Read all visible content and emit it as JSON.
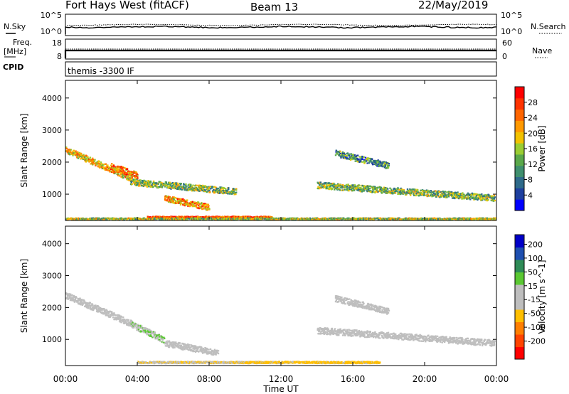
{
  "header": {
    "radar": "Fort Hays West (fitACF)",
    "beam": "Beam 13",
    "date": "22/May/2019"
  },
  "side_labels": {
    "nsky": "N.Sky",
    "nsky_ticks": [
      "10^5",
      "10^0"
    ],
    "nsearch": "N.Search",
    "nsearch_ticks": [
      "10^5",
      "10^0"
    ],
    "freq": "Freq.",
    "freq_unit": "[MHz]",
    "freq_ticks": [
      "18",
      "8"
    ],
    "nave": "Nave",
    "nave_ticks": [
      "60",
      "0"
    ],
    "cpid": "CPID"
  },
  "cpid_text": "themis -3300 IF",
  "colors": {
    "power_scale": [
      "#0000ff",
      "#1e3f9e",
      "#2e6a8a",
      "#3f8f6e",
      "#5aa84a",
      "#9acd32",
      "#f2c200",
      "#ff9900",
      "#ff6600",
      "#ff3300",
      "#ff0000"
    ],
    "velocity_scale": [
      "#ff0000",
      "#ff4400",
      "#ff7f00",
      "#ffbf00",
      "#bebebe",
      "#bebebe",
      "#5ac832",
      "#2e8b57",
      "#1e4fb0",
      "#0000c8"
    ],
    "power_ticks": [
      "28",
      "24",
      "20",
      "16",
      "12",
      "8",
      "4"
    ],
    "velocity_ticks": [
      "200",
      "100",
      "50",
      "15",
      "-15",
      "-50",
      "-100",
      "-200"
    ]
  },
  "chart_data": [
    {
      "type": "heatmap",
      "panel": "power",
      "ylabel": "Slant Range [km]",
      "colorbar_label": "Power [dB]",
      "ylim": [
        180,
        4550
      ],
      "y_ticks": [
        "1000",
        "2000",
        "3000",
        "4000"
      ],
      "colorbar_range": [
        0,
        32
      ],
      "features": [
        {
          "t_start": 0.0,
          "t_end": 3.7,
          "range_start": 2400,
          "range_end": 1500,
          "value": 20
        },
        {
          "t_start": 2.5,
          "t_end": 4.0,
          "range_start": 1900,
          "range_end": 1600,
          "value": 24
        },
        {
          "t_start": 3.6,
          "t_end": 9.5,
          "range_start": 1400,
          "range_end": 1100,
          "value": 14
        },
        {
          "t_start": 5.5,
          "t_end": 8.0,
          "range_start": 900,
          "range_end": 600,
          "value": 22
        },
        {
          "t_start": 4.5,
          "t_end": 11.5,
          "range_start": 300,
          "range_end": 300,
          "value": 26
        },
        {
          "t_start": 14.0,
          "t_end": 23.9,
          "range_start": 1300,
          "range_end": 900,
          "value": 14
        },
        {
          "t_start": 15.0,
          "t_end": 18.0,
          "range_start": 2300,
          "range_end": 1900,
          "value": 10
        },
        {
          "t_start": 0.0,
          "t_end": 24.0,
          "range_start": 250,
          "range_end": 250,
          "value": 16
        }
      ]
    },
    {
      "type": "heatmap",
      "panel": "velocity",
      "ylabel": "Slant Range [km]",
      "xlabel": "Time UT",
      "colorbar_label": "Velocity [m s^-1]",
      "ylim": [
        180,
        4550
      ],
      "y_ticks": [
        "1000",
        "2000",
        "3000",
        "4000"
      ],
      "x_ticks": [
        "00:00",
        "04:00",
        "08:00",
        "12:00",
        "16:00",
        "20:00",
        "00:00"
      ],
      "xlim": [
        0,
        24
      ],
      "colorbar_range": [
        -250,
        250
      ],
      "features": [
        {
          "t_start": 0.0,
          "t_end": 3.7,
          "range_start": 2400,
          "range_end": 1500,
          "value": 0
        },
        {
          "t_start": 3.6,
          "t_end": 5.5,
          "range_start": 1500,
          "range_end": 1000,
          "value": 40
        },
        {
          "t_start": 5.5,
          "t_end": 8.5,
          "range_start": 900,
          "range_end": 600,
          "value": 0
        },
        {
          "t_start": 4.0,
          "t_end": 11.0,
          "range_start": 300,
          "range_end": 300,
          "value": -40
        },
        {
          "t_start": 10.0,
          "t_end": 17.5,
          "range_start": 300,
          "range_end": 300,
          "value": -70
        },
        {
          "t_start": 14.0,
          "t_end": 23.9,
          "range_start": 1300,
          "range_end": 900,
          "value": 0
        },
        {
          "t_start": 15.0,
          "t_end": 18.0,
          "range_start": 2300,
          "range_end": 1900,
          "value": 0
        }
      ]
    }
  ]
}
